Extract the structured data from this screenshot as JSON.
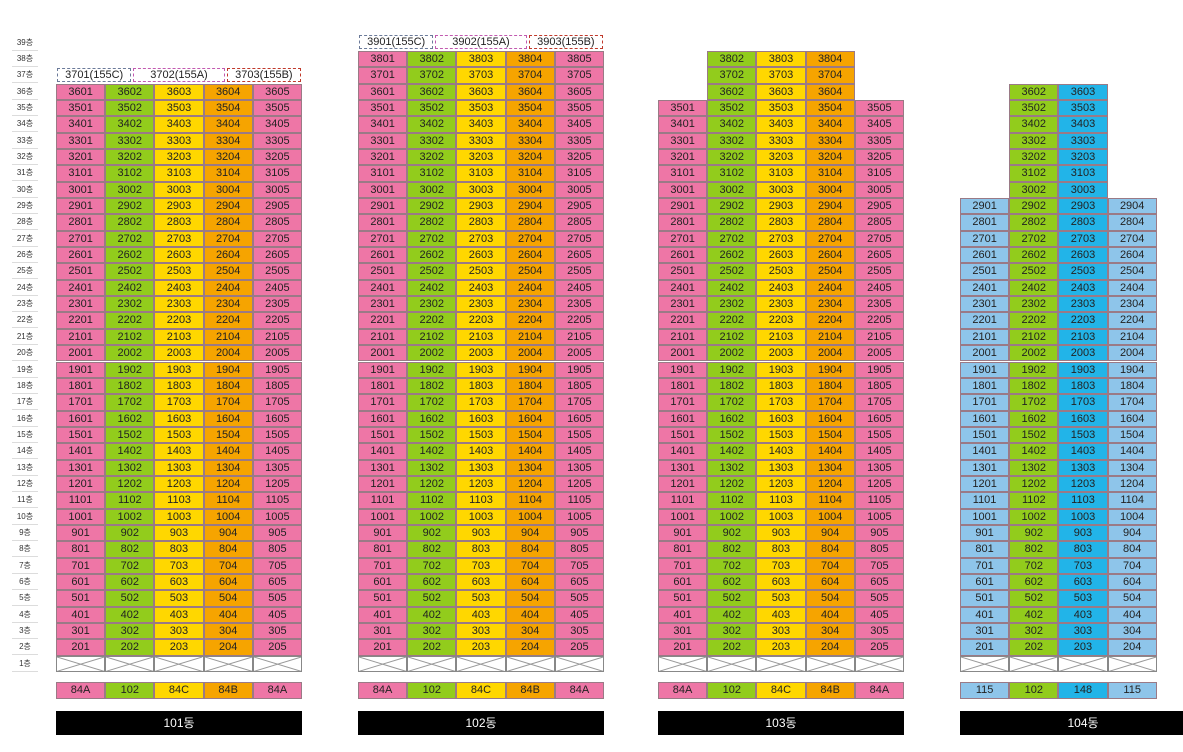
{
  "floor_labels": [
    "39층",
    "38층",
    "37층",
    "36층",
    "35층",
    "34층",
    "33층",
    "32층",
    "31층",
    "30층",
    "29층",
    "28층",
    "27층",
    "26층",
    "25층",
    "24층",
    "23층",
    "22층",
    "21층",
    "20층",
    "19층",
    "18층",
    "17층",
    "16층",
    "15층",
    "14층",
    "13층",
    "12층",
    "11층",
    "10층",
    "9층",
    "8층",
    "7층",
    "6층",
    "5층",
    "4층",
    "3층",
    "2층",
    "1층"
  ],
  "colors": {
    "84A": "#ee76a6",
    "102": "#92cc1c",
    "84C": "#ffd700",
    "84B": "#f6a400",
    "115": "#8ec5ea",
    "148": "#22b4e8"
  },
  "buildings": [
    {
      "name": "101동",
      "column_types": [
        "84A",
        "102",
        "84C",
        "84B",
        "84A"
      ],
      "type_labels": [
        "84A",
        "102",
        "84C",
        "84B",
        "84A"
      ],
      "top_floor": 36,
      "penthouse_units": [
        "3701(155C)",
        "3702(155A)",
        "3703(155B)"
      ],
      "penthouse_floor": 37
    },
    {
      "name": "102동",
      "column_types": [
        "84A",
        "102",
        "84C",
        "84B",
        "84A"
      ],
      "type_labels": [
        "84A",
        "102",
        "84C",
        "84B",
        "84A"
      ],
      "top_floor": 38,
      "penthouse_units": [
        "3901(155C)",
        "3902(155A)",
        "3903(155B)"
      ],
      "penthouse_floor": 39
    },
    {
      "name": "103동",
      "column_types": [
        "84A",
        "102",
        "84C",
        "84B",
        "84A"
      ],
      "type_labels": [
        "84A",
        "102",
        "84C",
        "84B",
        "84A"
      ],
      "column_top_floors": [
        35,
        38,
        38,
        38,
        35
      ]
    },
    {
      "name": "104동",
      "column_types": [
        "115",
        "102",
        "148",
        "115"
      ],
      "type_labels": [
        "115",
        "102",
        "148",
        "115"
      ],
      "column_top_floors": [
        29,
        36,
        36,
        29
      ]
    }
  ]
}
